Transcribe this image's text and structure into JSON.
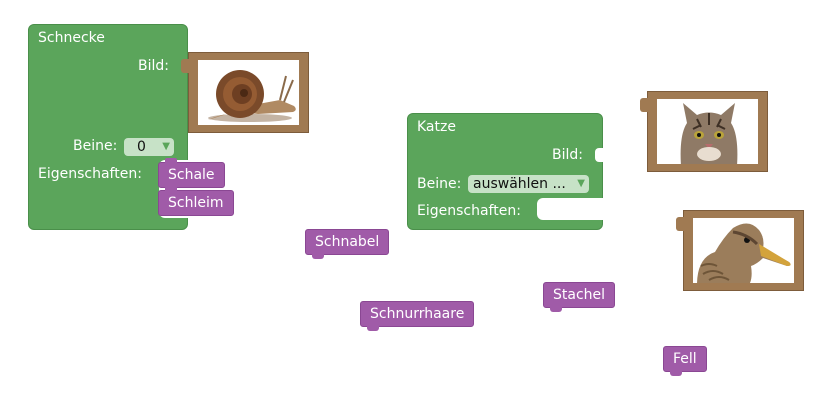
{
  "colors": {
    "block_green": "#5ba55b",
    "property_purple": "#a05ba8",
    "picture_frame": "#a07a52",
    "dropdown_bg": "#c7e2c7"
  },
  "animals": [
    {
      "name": "Schnecke",
      "picture_label": "Bild:",
      "legs_label": "Beine:",
      "legs_value": "0",
      "properties_label": "Eigenschaften:",
      "attached_properties": [
        "Schale",
        "Schleim"
      ],
      "picture": "snail"
    },
    {
      "name": "Katze",
      "picture_label": "Bild:",
      "legs_label": "Beine:",
      "legs_value": "auswählen ...",
      "properties_label": "Eigenschaften:",
      "attached_properties": []
    }
  ],
  "loose_pictures": [
    {
      "icon": "cat-photo"
    },
    {
      "icon": "duck-photo"
    }
  ],
  "loose_properties": [
    "Schnabel",
    "Schnurrhaare",
    "Stachel",
    "Fell"
  ]
}
